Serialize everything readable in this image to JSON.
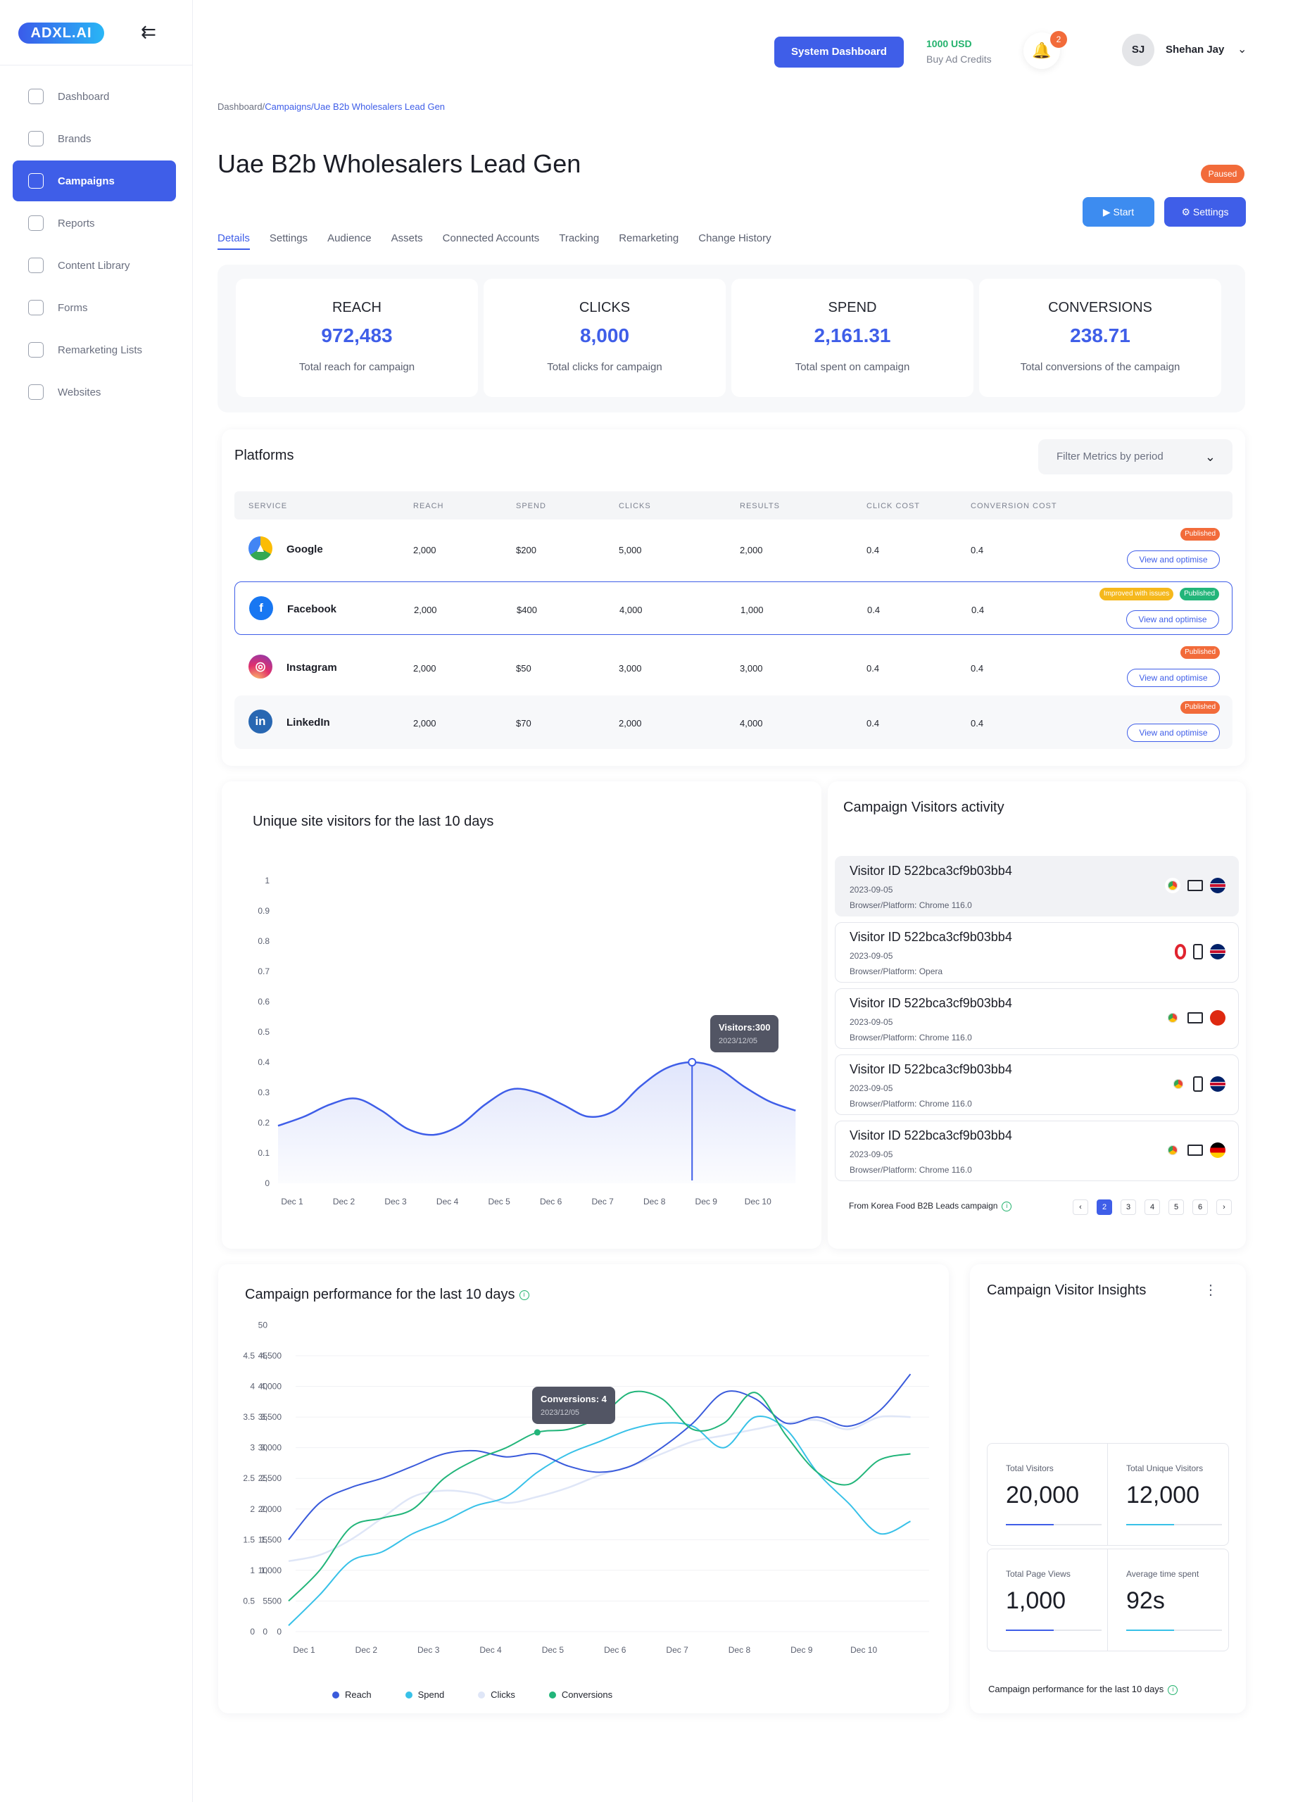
{
  "app": {
    "logo_text": "ADXL.AI",
    "collapse_icon": "arrow-left-icon"
  },
  "sidebar": {
    "items": [
      {
        "label": "Dashboard",
        "icon": "chart-line-icon",
        "active": false
      },
      {
        "label": "Brands",
        "icon": "bag-icon",
        "active": false
      },
      {
        "label": "Campaigns",
        "icon": "bar-chart-icon",
        "active": true
      },
      {
        "label": "Reports",
        "icon": "reports-icon",
        "active": false
      },
      {
        "label": "Content Library",
        "icon": "image-icon",
        "active": false
      },
      {
        "label": "Forms",
        "icon": "form-icon",
        "active": false
      },
      {
        "label": "Remarketing Lists",
        "icon": "list-icon",
        "active": false
      },
      {
        "label": "Websites",
        "icon": "monitor-icon",
        "active": false
      }
    ]
  },
  "header": {
    "system_button": "System Dashboard",
    "credits_amount": "1000 USD",
    "credits_label": "Buy Ad Credits",
    "notification_count": "2",
    "user_initials": "SJ",
    "user_name": "Shehan Jay"
  },
  "breadcrumb": {
    "root": "Dashboard/",
    "campaigns": "Campaigns/",
    "current": "Uae B2b Wholesalers Lead Gen"
  },
  "page": {
    "title": "Uae B2b Wholesalers Lead Gen",
    "status": "Paused",
    "start_label": "Start",
    "settings_label": "Settings"
  },
  "tabs": [
    "Details",
    "Settings",
    "Audience",
    "Assets",
    "Connected Accounts",
    "Tracking",
    "Remarketing",
    "Change History"
  ],
  "stats": [
    {
      "label": "REACH",
      "value": "972,483",
      "desc": "Total reach for campaign"
    },
    {
      "label": "CLICKS",
      "value": "8,000",
      "desc": "Total clicks for campaign"
    },
    {
      "label": "SPEND",
      "value": "2,161.31",
      "desc": "Total spent on campaign"
    },
    {
      "label": "CONVERSIONS",
      "value": "238.71",
      "desc": "Total conversions of the campaign"
    }
  ],
  "platforms": {
    "title": "Platforms",
    "filter_placeholder": "Filter Metrics by period",
    "headers": [
      "SERVICE",
      "REACH",
      "SPEND",
      "CLICKS",
      "RESULTS",
      "CLICK COST",
      "CONVERSION COST"
    ],
    "view_label": "View and optimise",
    "rows": [
      {
        "name": "Google",
        "reach": "2,000",
        "spend": "$200",
        "clicks": "5,000",
        "results": "2,000",
        "click_cost": "0.4",
        "conv_cost": "0.4",
        "badges": [
          "Published"
        ]
      },
      {
        "name": "Facebook",
        "reach": "2,000",
        "spend": "$400",
        "clicks": "4,000",
        "results": "1,000",
        "click_cost": "0.4",
        "conv_cost": "0.4",
        "badges": [
          "Improved with issues",
          "Published"
        ]
      },
      {
        "name": "Instagram",
        "reach": "2,000",
        "spend": "$50",
        "clicks": "3,000",
        "results": "3,000",
        "click_cost": "0.4",
        "conv_cost": "0.4",
        "badges": [
          "Published"
        ]
      },
      {
        "name": "LinkedIn",
        "reach": "2,000",
        "spend": "$70",
        "clicks": "2,000",
        "results": "4,000",
        "click_cost": "0.4",
        "conv_cost": "0.4",
        "badges": [
          "Published"
        ]
      }
    ]
  },
  "visitors_chart": {
    "title": "Unique site visitors for the last 10 days",
    "tooltip_label": "Visitors:300",
    "tooltip_date": "2023/12/05"
  },
  "activity": {
    "title": "Campaign Visitors activity",
    "items": [
      {
        "id": "Visitor ID 522bca3cf9b03bb4",
        "date": "2023-09-05",
        "platform": "Browser/Platform: Chrome 116.0",
        "icons": [
          "chrome-icon",
          "desktop-icon",
          "uk-flag-icon"
        ]
      },
      {
        "id": "Visitor ID 522bca3cf9b03bb4",
        "date": "2023-09-05",
        "platform": "Browser/Platform: Opera",
        "icons": [
          "opera-icon",
          "mobile-icon",
          "uk-flag-icon"
        ]
      },
      {
        "id": "Visitor ID 522bca3cf9b03bb4",
        "date": "2023-09-05",
        "platform": "Browser/Platform: Chrome 116.0",
        "icons": [
          "chrome-icon",
          "desktop-icon",
          "china-flag-icon"
        ]
      },
      {
        "id": "Visitor ID 522bca3cf9b03bb4",
        "date": "2023-09-05",
        "platform": "Browser/Platform: Chrome 116.0",
        "icons": [
          "chrome-icon",
          "mobile-icon",
          "uk-flag-icon"
        ]
      },
      {
        "id": "Visitor ID 522bca3cf9b03bb4",
        "date": "2023-09-05",
        "platform": "Browser/Platform: Chrome 116.0",
        "icons": [
          "chrome-icon",
          "desktop-icon",
          "germany-flag-icon"
        ]
      }
    ],
    "source": "From Korea Food B2B Leads campaign",
    "pages": [
      "‹",
      "2",
      "3",
      "4",
      "5",
      "6",
      "›"
    ],
    "current_page": "2"
  },
  "performance_chart": {
    "title": "Campaign performance for the last 10 days",
    "tooltip_label": "Conversions: 4",
    "tooltip_date": "2023/12/05"
  },
  "insights": {
    "title": "Campaign Visitor Insights",
    "menu_icon": "kebab-icon",
    "boxes": [
      {
        "label": "Total Visitors",
        "value": "20,000",
        "fill": 0.5,
        "color": "#3f5ee8"
      },
      {
        "label": "Total Unique Visitors",
        "value": "12,000",
        "fill": 0.5,
        "color": "#38c1e8"
      },
      {
        "label": "Total Page Views",
        "value": "1,000",
        "fill": 0.5,
        "color": "#3f5ee8"
      },
      {
        "label": "Average time spent",
        "value": "92s",
        "fill": 0.5,
        "color": "#38c1e8"
      }
    ],
    "footer": "Campaign performance for the last 10 days"
  },
  "colors": {
    "accent": "#3f5ee8",
    "reach": "#3a5bdb",
    "spend": "#38c1e8",
    "clicks": "#dfe6f7",
    "conversions": "#22b57a",
    "orange": "#f26b3a"
  },
  "chart_data": [
    {
      "type": "area",
      "title": "Unique site visitors for the last 10 days",
      "categories": [
        "Dec 1",
        "Dec 2",
        "Dec 3",
        "Dec 4",
        "Dec 5",
        "Dec 6",
        "Dec 7",
        "Dec 8",
        "Dec 9",
        "Dec 10"
      ],
      "x": [
        0,
        0.5,
        1,
        1.5,
        2,
        2.5,
        3,
        3.5,
        4,
        4.5,
        5,
        5.5,
        6,
        6.5,
        7,
        7.5,
        8,
        8.5,
        9,
        9.5,
        10
      ],
      "values": [
        0.19,
        0.22,
        0.26,
        0.28,
        0.24,
        0.18,
        0.16,
        0.19,
        0.26,
        0.31,
        0.3,
        0.26,
        0.22,
        0.24,
        0.32,
        0.38,
        0.4,
        0.38,
        0.32,
        0.27,
        0.24
      ],
      "yticks": [
        "0",
        "0.1",
        "0.2",
        "0.3",
        "0.4",
        "0.5",
        "0.6",
        "0.7",
        "0.8",
        "0.9",
        "1"
      ],
      "ylim": [
        0,
        1
      ]
    },
    {
      "type": "line",
      "title": "Campaign performance for the last 10 days",
      "categories": [
        "Dec 1",
        "Dec 2",
        "Dec 3",
        "Dec 4",
        "Dec 5",
        "Dec 6",
        "Dec 7",
        "Dec 8",
        "Dec 9",
        "Dec 10"
      ],
      "x": [
        0,
        0.5,
        1,
        1.5,
        2,
        2.5,
        3,
        3.5,
        4,
        4.5,
        5,
        5.5,
        6,
        6.5,
        7,
        7.5,
        8,
        8.5,
        9,
        9.5,
        10
      ],
      "yticks_1": [
        "0",
        "0.5",
        "1",
        "1.5",
        "2",
        "2.5",
        "3",
        "3.5",
        "4",
        "4.5"
      ],
      "yticks_2": [
        "0",
        "5",
        "10",
        "15",
        "20",
        "25",
        "30",
        "35",
        "40",
        "45",
        "50"
      ],
      "yticks_3": [
        "0",
        "500",
        "1,000",
        "1,500",
        "2,000",
        "2,500",
        "3,000",
        "3,500",
        "4,000",
        "4,500"
      ],
      "ylim": [
        0,
        4.5
      ],
      "series": [
        {
          "name": "Reach",
          "color": "#3a5bdb",
          "values": [
            1.5,
            2.1,
            2.35,
            2.5,
            2.7,
            2.9,
            2.95,
            2.85,
            2.9,
            2.7,
            2.6,
            2.7,
            3.0,
            3.4,
            3.9,
            3.8,
            3.4,
            3.5,
            3.35,
            3.6,
            4.2
          ]
        },
        {
          "name": "Spend",
          "color": "#38c1e8",
          "values": [
            0.1,
            0.6,
            1.15,
            1.3,
            1.6,
            1.8,
            2.05,
            2.2,
            2.6,
            2.9,
            3.1,
            3.3,
            3.4,
            3.35,
            3.0,
            3.5,
            3.3,
            2.6,
            2.1,
            1.6,
            1.8
          ]
        },
        {
          "name": "Clicks",
          "color": "#dfe6f7",
          "values": [
            1.15,
            1.25,
            1.5,
            1.85,
            2.2,
            2.3,
            2.25,
            2.1,
            2.2,
            2.35,
            2.55,
            2.7,
            2.9,
            3.1,
            3.2,
            3.3,
            3.4,
            3.45,
            3.3,
            3.5,
            3.5
          ]
        },
        {
          "name": "Conversions",
          "color": "#22b57a",
          "values": [
            0.5,
            1.0,
            1.7,
            1.85,
            2.0,
            2.5,
            2.8,
            3.0,
            3.25,
            3.3,
            3.5,
            3.9,
            3.8,
            3.3,
            3.4,
            3.9,
            3.2,
            2.6,
            2.4,
            2.8,
            2.9
          ]
        }
      ]
    }
  ]
}
